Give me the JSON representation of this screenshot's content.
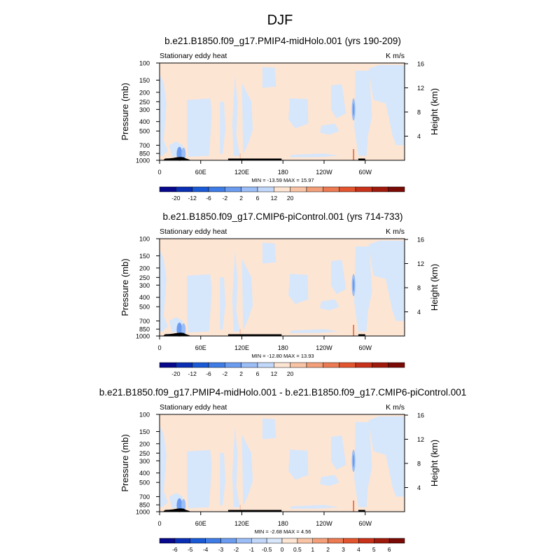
{
  "figure": {
    "title": "DJF"
  },
  "colors": {
    "background_field": "#FDE5D3",
    "negative_field": "#D6E6FB",
    "terrain": "#000000"
  },
  "chart_data": [
    {
      "type": "heatmap",
      "title": "b.e21.B1850.f09_g17.PMIP4-midHolo.001 (yrs 190-209)",
      "left_label": "Stationary eddy heat",
      "right_label": "K m/s",
      "ylabel": "Pressure (mb)",
      "ylabel_right": "Height (km)",
      "x_ticks": [
        "0",
        "60E",
        "120E",
        "180",
        "120W",
        "60W"
      ],
      "x_tick_values": [
        0,
        60,
        120,
        180,
        240,
        300
      ],
      "xlim": [
        0,
        357.5
      ],
      "y_ticks": [
        100,
        150,
        200,
        250,
        300,
        400,
        500,
        700,
        850,
        1000
      ],
      "ylim": [
        1000,
        100
      ],
      "y_scale": "log",
      "y_right_ticks": [
        4,
        8,
        12,
        16
      ],
      "min_max_text": "MIN = -13.59  MAX =  15.97",
      "colorbar_labels": [
        "-20",
        "-12",
        "-6",
        "-2",
        "2",
        "6",
        "12",
        "20"
      ],
      "colorbar_colors": [
        "#08088C",
        "#0A2FB4",
        "#1B5AD6",
        "#3F7CE6",
        "#6C9CF0",
        "#9CBEF6",
        "#C2D8FA",
        "#FDE5D3",
        "#F9C4A6",
        "#F3A07A",
        "#EC7A52",
        "#E3552E",
        "#C8321A",
        "#A01A0C",
        "#7A0A05"
      ]
    },
    {
      "type": "heatmap",
      "title": "b.e21.B1850.f09_g17.CMIP6-piControl.001 (yrs 714-733)",
      "left_label": "Stationary eddy heat",
      "right_label": "K m/s",
      "ylabel": "Pressure (mb)",
      "ylabel_right": "Height (km)",
      "x_ticks": [
        "0",
        "60E",
        "120E",
        "180",
        "120W",
        "60W"
      ],
      "x_tick_values": [
        0,
        60,
        120,
        180,
        240,
        300
      ],
      "xlim": [
        0,
        357.5
      ],
      "y_ticks": [
        100,
        150,
        200,
        250,
        300,
        400,
        500,
        700,
        850,
        1000
      ],
      "ylim": [
        1000,
        100
      ],
      "y_scale": "log",
      "y_right_ticks": [
        4,
        8,
        12,
        16
      ],
      "min_max_text": "MIN = -12.80  MAX =  13.93",
      "colorbar_labels": [
        "-20",
        "-12",
        "-6",
        "-2",
        "2",
        "6",
        "12",
        "20"
      ],
      "colorbar_colors": [
        "#08088C",
        "#0A2FB4",
        "#1B5AD6",
        "#3F7CE6",
        "#6C9CF0",
        "#9CBEF6",
        "#C2D8FA",
        "#FDE5D3",
        "#F9C4A6",
        "#F3A07A",
        "#EC7A52",
        "#E3552E",
        "#C8321A",
        "#A01A0C",
        "#7A0A05"
      ]
    },
    {
      "type": "heatmap",
      "title": "b.e21.B1850.f09_g17.PMIP4-midHolo.001 - b.e21.B1850.f09_g17.CMIP6-piControl.001",
      "left_label": "Stationary eddy heat",
      "right_label": "K m/s",
      "ylabel": "Pressure (mb)",
      "ylabel_right": "Height (km)",
      "x_ticks": [
        "0",
        "60E",
        "120E",
        "180",
        "120W",
        "60W"
      ],
      "x_tick_values": [
        0,
        60,
        120,
        180,
        240,
        300
      ],
      "xlim": [
        0,
        357.5
      ],
      "y_ticks": [
        100,
        150,
        200,
        250,
        300,
        400,
        500,
        700,
        850,
        1000
      ],
      "ylim": [
        1000,
        100
      ],
      "y_scale": "log",
      "y_right_ticks": [
        4,
        8,
        12,
        16
      ],
      "min_max_text": "MIN =  -2.68  MAX =   4.56",
      "colorbar_labels": [
        "-6",
        "-5",
        "-4",
        "-3",
        "-2",
        "-1",
        "-0.5",
        "0",
        "0.5",
        "1",
        "2",
        "3",
        "4",
        "5",
        "6"
      ],
      "colorbar_colors": [
        "#08088C",
        "#0A2FB4",
        "#1B5AD6",
        "#3F7CE6",
        "#6C9CF0",
        "#9CBEF6",
        "#C2D8FA",
        "#D9E7FB",
        "#FDE5D3",
        "#F9C4A6",
        "#F3A07A",
        "#EC7A52",
        "#E3552E",
        "#C8321A",
        "#A01A0C",
        "#7A0A05"
      ]
    }
  ]
}
